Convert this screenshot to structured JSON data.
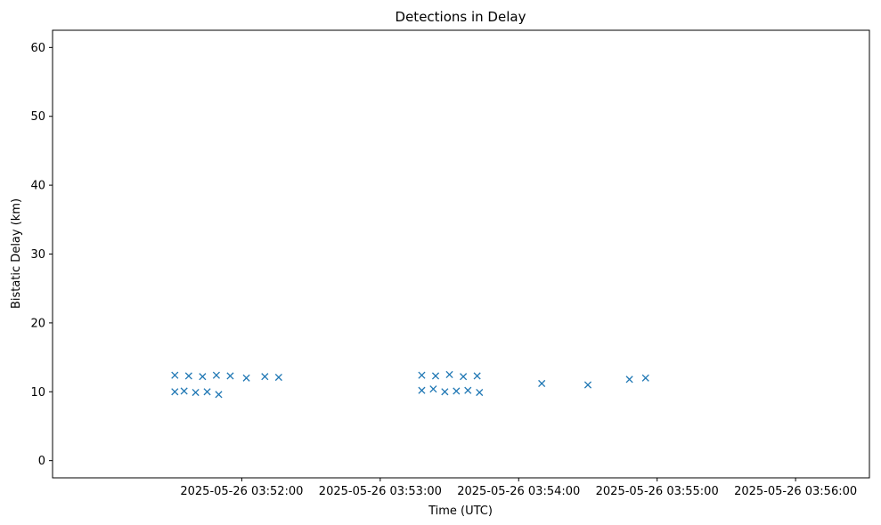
{
  "chart_data": {
    "type": "scatter",
    "title": "Detections in Delay",
    "xlabel": "Time (UTC)",
    "ylabel": "Bistatic Delay (km)",
    "xlim": [
      "2025-05-26 03:50:38",
      "2025-05-26 03:56:32"
    ],
    "ylim": [
      -2.5,
      62.5
    ],
    "x_ticks": [
      "2025-05-26 03:52:00",
      "2025-05-26 03:53:00",
      "2025-05-26 03:54:00",
      "2025-05-26 03:55:00",
      "2025-05-26 03:56:00"
    ],
    "y_ticks": [
      0,
      10,
      20,
      30,
      40,
      50,
      60
    ],
    "grid": false,
    "marker": "x",
    "marker_color": "#1f77b4",
    "series": [
      {
        "points": [
          [
            "2025-05-26 03:51:31",
            12.4
          ],
          [
            "2025-05-26 03:51:37",
            12.3
          ],
          [
            "2025-05-26 03:51:43",
            12.2
          ],
          [
            "2025-05-26 03:51:49",
            12.4
          ],
          [
            "2025-05-26 03:51:55",
            12.3
          ],
          [
            "2025-05-26 03:52:02",
            12.0
          ],
          [
            "2025-05-26 03:52:10",
            12.2
          ],
          [
            "2025-05-26 03:52:16",
            12.1
          ],
          [
            "2025-05-26 03:53:18",
            12.4
          ],
          [
            "2025-05-26 03:53:24",
            12.3
          ],
          [
            "2025-05-26 03:53:30",
            12.5
          ],
          [
            "2025-05-26 03:53:36",
            12.2
          ],
          [
            "2025-05-26 03:53:42",
            12.3
          ],
          [
            "2025-05-26 03:54:10",
            11.2
          ],
          [
            "2025-05-26 03:54:30",
            11.0
          ],
          [
            "2025-05-26 03:54:48",
            11.8
          ],
          [
            "2025-05-26 03:54:55",
            12.0
          ],
          [
            "2025-05-26 03:51:31",
            10.0
          ],
          [
            "2025-05-26 03:51:35",
            10.1
          ],
          [
            "2025-05-26 03:51:40",
            9.9
          ],
          [
            "2025-05-26 03:51:45",
            10.0
          ],
          [
            "2025-05-26 03:51:50",
            9.6
          ],
          [
            "2025-05-26 03:53:18",
            10.2
          ],
          [
            "2025-05-26 03:53:23",
            10.4
          ],
          [
            "2025-05-26 03:53:28",
            10.0
          ],
          [
            "2025-05-26 03:53:33",
            10.1
          ],
          [
            "2025-05-26 03:53:38",
            10.2
          ],
          [
            "2025-05-26 03:53:43",
            9.9
          ]
        ]
      }
    ]
  }
}
